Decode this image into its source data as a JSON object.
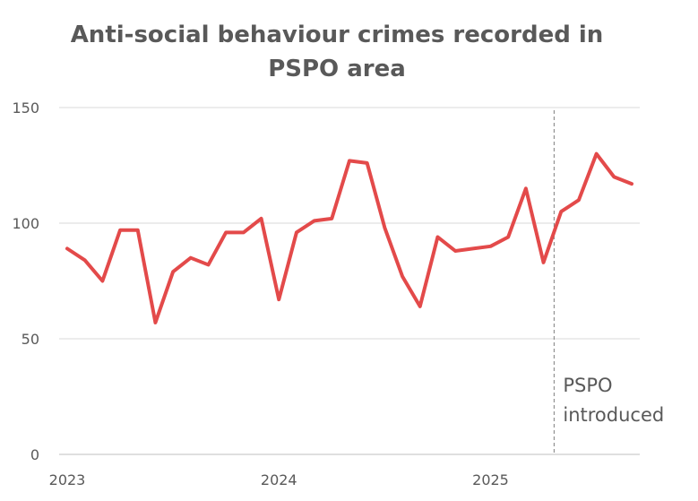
{
  "chart_data": {
    "type": "line",
    "title_lines": [
      "Anti-social behaviour crimes recorded in",
      "PSPO area"
    ],
    "xlabel": "",
    "ylabel": "",
    "ylim": [
      0,
      150
    ],
    "yticks": [
      0,
      50,
      100,
      150
    ],
    "xtick_labels": [
      {
        "label": "2023",
        "index": 0
      },
      {
        "label": "2024",
        "index": 12
      },
      {
        "label": "2025",
        "index": 24
      }
    ],
    "grid": true,
    "legend": "none",
    "series": [
      {
        "color": "#E34A4A",
        "values": [
          89,
          84,
          75,
          97,
          97,
          57,
          79,
          85,
          82,
          96,
          96,
          102,
          67,
          96,
          101,
          102,
          127,
          126,
          98,
          77,
          64,
          94,
          88,
          89,
          90,
          94,
          115,
          83,
          105,
          110,
          130,
          120,
          117
        ]
      }
    ],
    "annotations": [
      {
        "type": "vline",
        "index": 27.6,
        "style": "dashed",
        "color": "#7F7F7F",
        "label_lines": [
          "PSPO",
          "introduced"
        ]
      }
    ],
    "gridline_color": "#D9D9D9",
    "axis_color": "#BFBFBF"
  }
}
